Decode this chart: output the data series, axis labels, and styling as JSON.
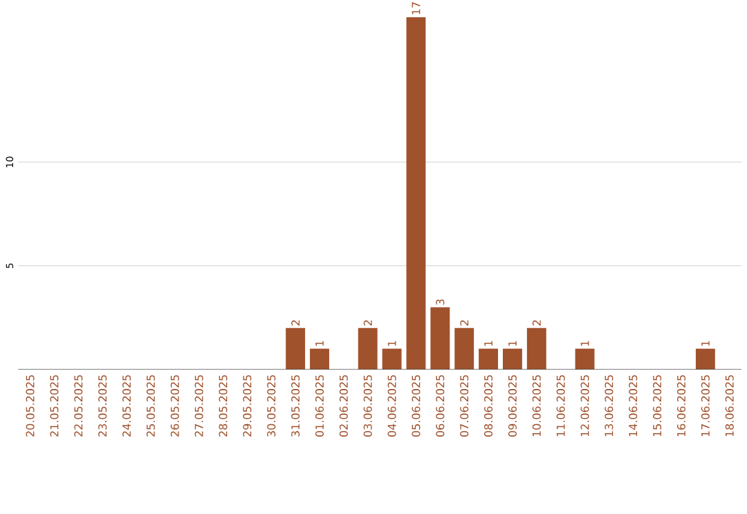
{
  "chart_data": {
    "type": "bar",
    "categories": [
      "20.05.2025",
      "21.05.2025",
      "22.05.2025",
      "23.05.2025",
      "24.05.2025",
      "25.05.2025",
      "26.05.2025",
      "27.05.2025",
      "28.05.2025",
      "29.05.2025",
      "30.05.2025",
      "31.05.2025",
      "01.06.2025",
      "02.06.2025",
      "03.06.2025",
      "04.06.2025",
      "05.06.2025",
      "06.06.2025",
      "07.06.2025",
      "08.06.2025",
      "09.06.2025",
      "10.06.2025",
      "11.06.2025",
      "12.06.2025",
      "13.06.2025",
      "14.06.2025",
      "15.06.2025",
      "16.06.2025",
      "17.06.2025",
      "18.06.2025"
    ],
    "values": [
      0,
      0,
      0,
      0,
      0,
      0,
      0,
      0,
      0,
      0,
      0,
      2,
      1,
      0,
      2,
      1,
      17,
      3,
      2,
      1,
      1,
      2,
      0,
      1,
      0,
      0,
      0,
      0,
      1,
      0
    ],
    "value_labels": [
      null,
      null,
      null,
      null,
      null,
      null,
      null,
      null,
      null,
      null,
      null,
      "2",
      "1",
      null,
      "2",
      "1",
      "17",
      "3",
      "2",
      "1",
      "1",
      "2",
      null,
      "1",
      null,
      null,
      null,
      null,
      "1",
      null
    ],
    "color": "#a0522d",
    "ylim": [
      0,
      17
    ],
    "yticks": [
      5,
      10
    ],
    "grid": "y"
  }
}
